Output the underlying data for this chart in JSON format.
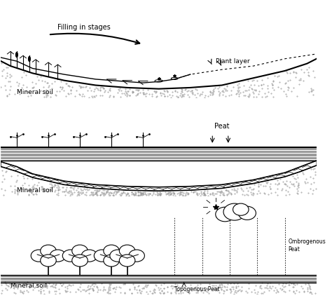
{
  "bg_color": "#ffffff",
  "line_color": "#000000",
  "soil_dot_color": "#888888",
  "panel1": {
    "arrow_label": "Filling in stages",
    "plant_layer_label": "Plant layer",
    "mineral_soil_label": "Mineral soil"
  },
  "panel2": {
    "peat_label": "Peat",
    "mineral_soil_label": "Mineral soil"
  },
  "panel3": {
    "ombrogenous_label": "Ombrogenous\nPeat",
    "topogenous_label": "Topogenous Peat",
    "mineral_soil_label": "Mineral soil"
  }
}
